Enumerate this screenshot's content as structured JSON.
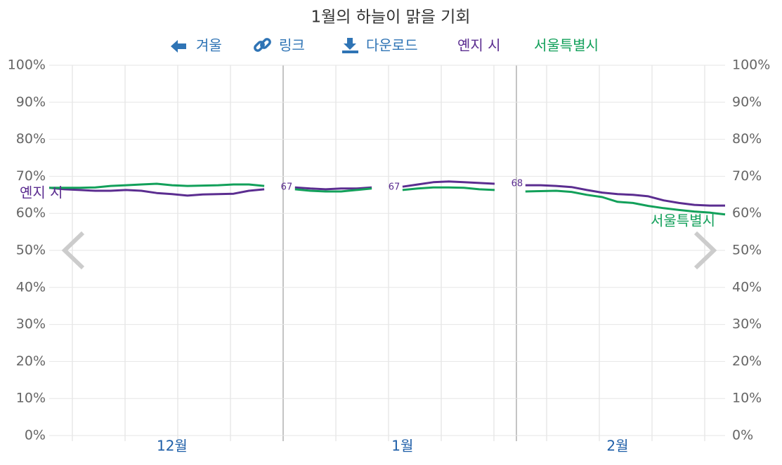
{
  "chart_data": {
    "type": "line",
    "title": "1월의 하늘이 맑을 기회",
    "toolbar": [
      "겨울",
      "링크",
      "다운로드"
    ],
    "categories": [
      null,
      null,
      null,
      null,
      null,
      null,
      null,
      null,
      "12월",
      null,
      null,
      null,
      null,
      null,
      null,
      null,
      null,
      null,
      null,
      null,
      null,
      null,
      null,
      "1월",
      null,
      null,
      null,
      null,
      null,
      null,
      null,
      null,
      null,
      null,
      null,
      null,
      null,
      "2월",
      null,
      null,
      null,
      null,
      null,
      null,
      null
    ],
    "series": [
      {
        "name": "옌지 시",
        "color": "#5b2d90",
        "values": [
          66.9,
          66.5,
          66.3,
          66.1,
          66.1,
          66.3,
          66.1,
          65.5,
          65.2,
          64.8,
          65.1,
          65.2,
          65.3,
          66.1,
          66.5,
          null,
          67.0,
          66.7,
          66.5,
          66.7,
          66.7,
          67.0,
          null,
          67.2,
          67.8,
          68.4,
          68.6,
          68.4,
          68.2,
          68.0,
          null,
          67.6,
          67.6,
          67.4,
          67.1,
          66.3,
          65.6,
          65.2,
          65.0,
          64.6,
          63.5,
          62.8,
          62.3,
          62.1,
          62.1
        ]
      },
      {
        "name": "서울특별시",
        "color": "#12a05a",
        "values": [
          66.9,
          66.9,
          66.9,
          67.0,
          67.4,
          67.6,
          67.8,
          68.0,
          67.6,
          67.4,
          67.5,
          67.6,
          67.8,
          67.8,
          67.4,
          null,
          66.5,
          66.1,
          65.9,
          65.9,
          66.3,
          66.7,
          null,
          66.3,
          66.7,
          67.0,
          67.0,
          66.9,
          66.5,
          66.3,
          null,
          65.9,
          66.0,
          66.1,
          65.8,
          65.0,
          64.4,
          63.1,
          62.8,
          62.0,
          61.4,
          60.9,
          60.5,
          60.2,
          59.7
        ]
      }
    ],
    "gap_labels": [
      67,
      67,
      68
    ],
    "ylim": [
      0,
      100
    ],
    "yticks": [
      {
        "value": 0,
        "label": "0%"
      },
      {
        "value": 10,
        "label": "10%"
      },
      {
        "value": 20,
        "label": "20%"
      },
      {
        "value": 30,
        "label": "30%"
      },
      {
        "value": 40,
        "label": "40%"
      },
      {
        "value": 50,
        "label": "50%"
      },
      {
        "value": 60,
        "label": "60%"
      },
      {
        "value": 70,
        "label": "70%"
      },
      {
        "value": 80,
        "label": "80%"
      },
      {
        "value": 90,
        "label": "90%"
      },
      {
        "value": 100,
        "label": "100%"
      }
    ],
    "grid": true
  }
}
